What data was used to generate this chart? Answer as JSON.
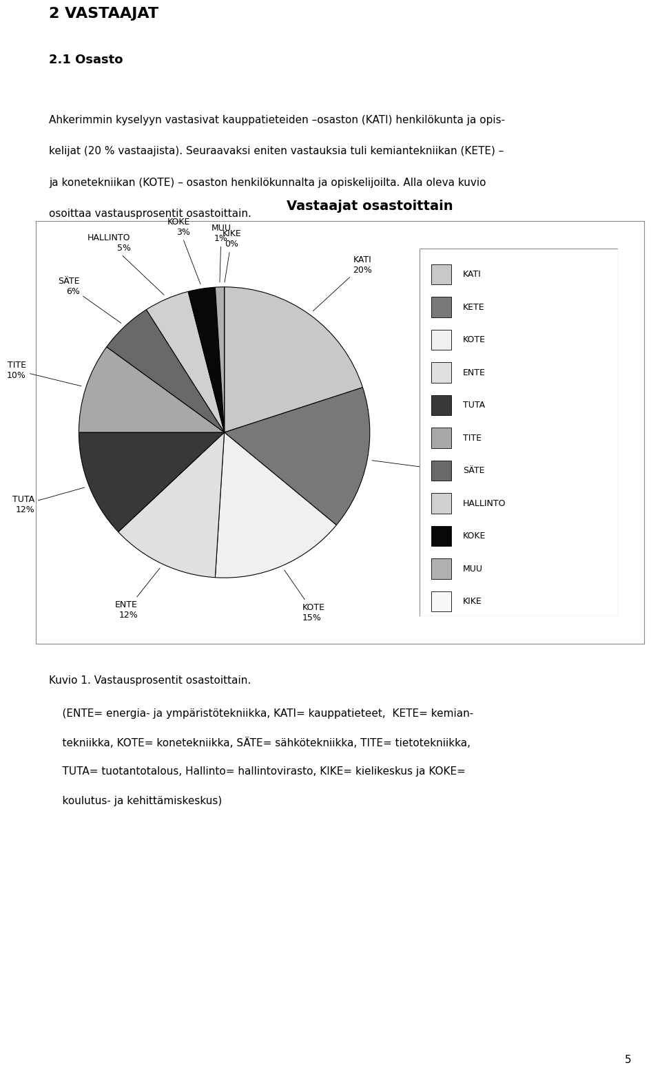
{
  "title": "Vastaajat osastoittain",
  "labels": [
    "KATI",
    "KETE",
    "KOTE",
    "ENTE",
    "TUTA",
    "TITE",
    "SÄTE",
    "HALLINTO",
    "KOKE",
    "MUU",
    "KIKE"
  ],
  "values": [
    20,
    16,
    15,
    12,
    12,
    10,
    6,
    5,
    3,
    1,
    0
  ],
  "colors": [
    "#c8c8c8",
    "#787878",
    "#f0f0f0",
    "#e0e0e0",
    "#383838",
    "#a8a8a8",
    "#686868",
    "#d0d0d0",
    "#080808",
    "#b0b0b0",
    "#f8f8f8"
  ],
  "page_title": "2 VASTAAJAT",
  "section_title": "2.1 Osasto",
  "body_text1": "Ahkerimmin kyselyyn vastasivat kauppatieteiden –osaston (KATI) henkilökunta ja opis-",
  "body_text2": "kelijat (20 % vastaajista). Seuraavaksi eniten vastauksia tuli kemiantekniikan (KETE) –",
  "body_text3": "ja konetekniikan (KOTE) – osaston henkilökunnalta ja opiskelijoilta. Alla oleva kuvio",
  "body_text4": "osoittaa vastausprosentit osastoittain.",
  "caption": "Kuvio 1. Vastausprosentit osastoittain.",
  "footnote1": "    (ENTE= energia- ja ympäristötekniikka, KATI= kauppatieteet,  KETE= kemian-",
  "footnote2": "    tekniikka, KOTE= konetekniikka, SÄTE= sähkötekniikka, TITE= tietotekniikka,",
  "footnote3": "    TUTA= tuotantotalous, Hallinto= hallintovirasto, KIKE= kielikeskus ja KOKE=",
  "footnote4": "    koulutus- ja kehittämiskeskus)",
  "page_number": "5",
  "figsize": [
    9.6,
    16.18
  ],
  "title_fontsize": 14,
  "label_fontsize": 9,
  "legend_fontsize": 9
}
